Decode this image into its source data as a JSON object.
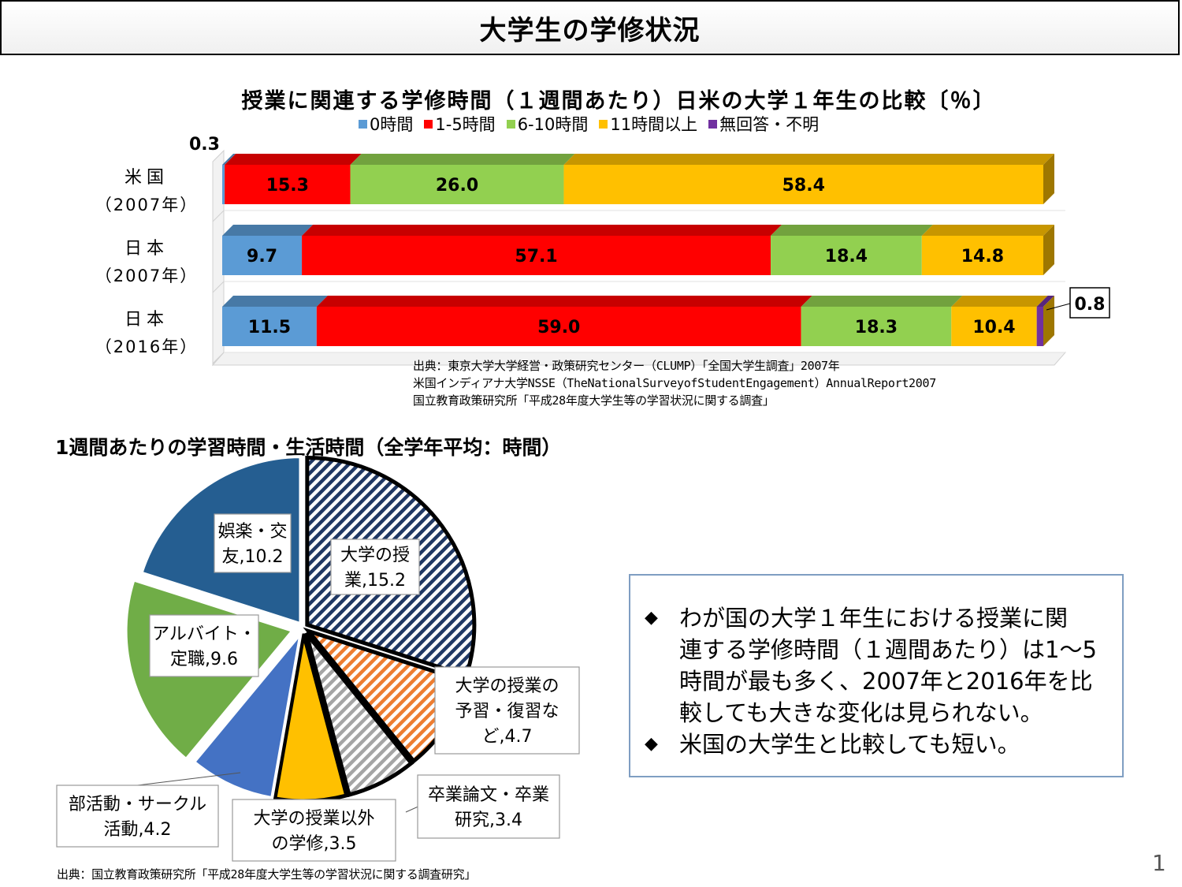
{
  "header": {
    "title": "大学生の学修状況"
  },
  "chart_data": [
    {
      "type": "bar",
      "orientation": "horizontal",
      "stacked": true,
      "title": "授業に関連する学修時間（１週間あたり）日米の大学１年生の比較〔％〕",
      "categories": [
        {
          "line1": "米国",
          "line2": "（2007年）"
        },
        {
          "line1": "日本",
          "line2": "（2007年）"
        },
        {
          "line1": "日本",
          "line2": "（2016年）"
        }
      ],
      "series": [
        {
          "name": "0時間",
          "color": "#5b9bd5",
          "values": [
            0.3,
            9.7,
            11.5
          ]
        },
        {
          "name": "1-5時間",
          "color": "#ff0000",
          "values": [
            15.3,
            57.1,
            59.0
          ]
        },
        {
          "name": "6-10時間",
          "color": "#92d050",
          "values": [
            26.0,
            18.4,
            18.3
          ]
        },
        {
          "name": "11時間以上",
          "color": "#ffc000",
          "values": [
            58.4,
            14.8,
            10.4
          ]
        },
        {
          "name": "無回答・不明",
          "color": "#7030a0",
          "values": [
            0,
            0,
            0.8
          ]
        }
      ],
      "data_labels": [
        [
          "0.3",
          "15.3",
          "26.0",
          "58.4",
          ""
        ],
        [
          "9.7",
          "57.1",
          "18.4",
          "14.8",
          ""
        ],
        [
          "11.5",
          "59.0",
          "18.3",
          "10.4",
          "0.8"
        ]
      ],
      "legend_position": "top",
      "xlim": [
        0,
        100
      ],
      "source": [
        "出典：東京大学大学経営・政策研究センター（CLUMP）「全国大学生調査」2007年",
        "米国インディアナ大学NSSE（TheNationalSurveyofStudentEngagement）AnnualReport2007",
        "国立教育政策研究所「平成28年度大学生等の学習状況に関する調査」"
      ]
    },
    {
      "type": "pie",
      "title": "1週間あたりの学習時間・生活時間（全学年平均：時間）",
      "slices": [
        {
          "lines": [
            "大学の授",
            "業,15.2"
          ],
          "value": 15.2,
          "color": "#203864",
          "pattern": "hatch"
        },
        {
          "lines": [
            "大学の授業の",
            "予習・復習な",
            "ど,4.7"
          ],
          "value": 4.7,
          "color": "#ed7d31",
          "pattern": "hatch"
        },
        {
          "lines": [
            "卒業論文・卒業",
            "研究,3.4"
          ],
          "value": 3.4,
          "color": "#a5a5a5",
          "pattern": "hatch"
        },
        {
          "lines": [
            "大学の授業以外",
            "の学修,3.5"
          ],
          "value": 3.5,
          "color": "#ffc000",
          "pattern": "solid"
        },
        {
          "lines": [
            "部活動・サークル",
            "活動,4.2"
          ],
          "value": 4.2,
          "color": "#4472c4",
          "pattern": "solid"
        },
        {
          "lines": [
            "アルバイト・",
            "定職,9.6"
          ],
          "value": 9.6,
          "color": "#70ad47",
          "pattern": "solid"
        },
        {
          "lines": [
            "娯楽・交",
            "友,10.2"
          ],
          "value": 10.2,
          "color": "#255e91",
          "pattern": "solid"
        }
      ],
      "source": "出典：国立教育政策研究所「平成28年度大学生等の学習状況に関する調査研究」"
    }
  ],
  "notes": [
    {
      "bullet": "◆",
      "lines": [
        "わが国の大学１年生における授業に関",
        "連する学修時間（１週間あたり）は1～5",
        "時間が最も多く、2007年と2016年を比",
        "較しても大きな変化は見られない。"
      ]
    },
    {
      "bullet": "◆",
      "lines": [
        "米国の大学生と比較しても短い。"
      ]
    }
  ],
  "page_number": "1"
}
